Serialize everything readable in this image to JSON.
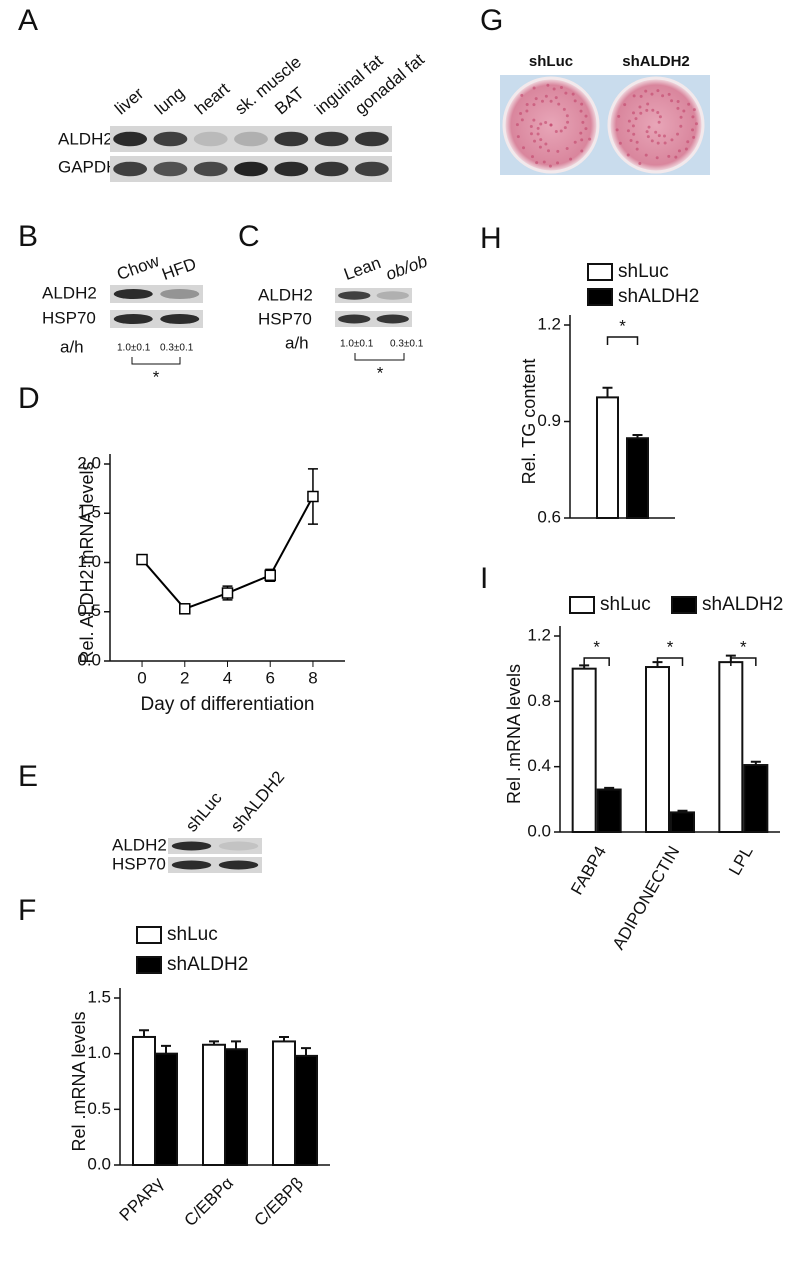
{
  "panel_labels": [
    "A",
    "B",
    "C",
    "D",
    "E",
    "F",
    "G",
    "H",
    "I"
  ],
  "blot_a": {
    "lanes": [
      "liver",
      "lung",
      "heart",
      "sk. muscle",
      "BAT",
      "inguinal fat",
      "gonadal fat"
    ],
    "rows": [
      "ALDH2",
      "GAPDH"
    ]
  },
  "blot_b": {
    "lanes": [
      "Chow",
      "HFD"
    ],
    "rows": [
      "ALDH2",
      "HSP70"
    ],
    "ratio_label": "a/h",
    "ratios": [
      "1.0±0.1",
      "0.3±0.1"
    ],
    "significance": "*"
  },
  "blot_c": {
    "lanes": [
      "Lean",
      "ob/ob"
    ],
    "rows": [
      "ALDH2",
      "HSP70"
    ],
    "ratio_label": "a/h",
    "ratios": [
      "1.0±0.1",
      "0.3±0.1"
    ],
    "significance": "*"
  },
  "blot_e": {
    "lanes": [
      "shLuc",
      "shALDH2"
    ],
    "rows": [
      "ALDH2",
      "HSP70"
    ]
  },
  "image_g": {
    "labels": [
      "shLuc",
      "shALDH2"
    ]
  },
  "chart_data": [
    {
      "type": "line",
      "x_label": "Day of differentiation",
      "y_label": "Rel. ALDH2 mRNA levels",
      "x": [
        0,
        2,
        4,
        6,
        8
      ],
      "values": [
        1.03,
        0.53,
        0.69,
        0.87,
        1.67
      ],
      "errors": [
        0.02,
        0.03,
        0.07,
        0.06,
        0.28
      ],
      "color": "#000000",
      "xlim": [
        -1.5,
        9.5
      ],
      "xticks": [
        0,
        2,
        4,
        6,
        8
      ],
      "ylim": [
        0,
        2.0
      ],
      "yticks": [
        {
          "value": 0,
          "label": "0.0"
        },
        0.5,
        {
          "value": 1,
          "label": "1.0"
        },
        1.5,
        {
          "value": 2,
          "label": "2.0"
        }
      ]
    },
    {
      "type": "bar",
      "y_label": "Rel .mRNA levels",
      "categories": [
        "PPARγ",
        "C/EBPα",
        "C/EBPβ"
      ],
      "series": [
        {
          "name": "shLuc",
          "color": "#ffffff",
          "values": [
            1.15,
            1.08,
            1.11
          ],
          "errors": [
            0.06,
            0.03,
            0.04
          ]
        },
        {
          "name": "shALDH2",
          "color": "#000000",
          "values": [
            1.0,
            1.04,
            0.98
          ],
          "errors": [
            0.07,
            0.07,
            0.07
          ]
        }
      ],
      "ylim": [
        0,
        1.5
      ],
      "yticks": [
        {
          "value": 0,
          "label": "0.0"
        },
        0.5,
        {
          "value": 1,
          "label": "1.0"
        },
        1.5
      ]
    },
    {
      "type": "bar",
      "y_label": "Rel. TG content",
      "categories": [
        null
      ],
      "series": [
        {
          "name": "shLuc",
          "color": "#ffffff",
          "values": [
            0.975
          ],
          "errors": [
            0.03
          ]
        },
        {
          "name": "shALDH2",
          "color": "#000000",
          "values": [
            0.848
          ],
          "errors": [
            0.01
          ]
        }
      ],
      "ylim": [
        0.6,
        1.2
      ],
      "yticks": [
        0.6,
        0.9,
        1.2
      ],
      "annotations": [
        "*"
      ]
    },
    {
      "type": "bar",
      "y_label": "Rel .mRNA levels",
      "categories": [
        "FABP4",
        "ADIPONECTIN",
        "LPL"
      ],
      "series": [
        {
          "name": "shLuc",
          "color": "#ffffff",
          "values": [
            1.0,
            1.01,
            1.04
          ],
          "errors": [
            0.02,
            0.03,
            0.04
          ]
        },
        {
          "name": "shALDH2",
          "color": "#000000",
          "values": [
            0.26,
            0.12,
            0.41
          ],
          "errors": [
            0.01,
            0.01,
            0.02
          ]
        }
      ],
      "ylim": [
        0,
        1.2
      ],
      "yticks": [
        {
          "value": 0,
          "label": "0.0"
        },
        0.4,
        0.8,
        1.2
      ],
      "annotations": [
        "*",
        "*",
        "*"
      ]
    }
  ]
}
